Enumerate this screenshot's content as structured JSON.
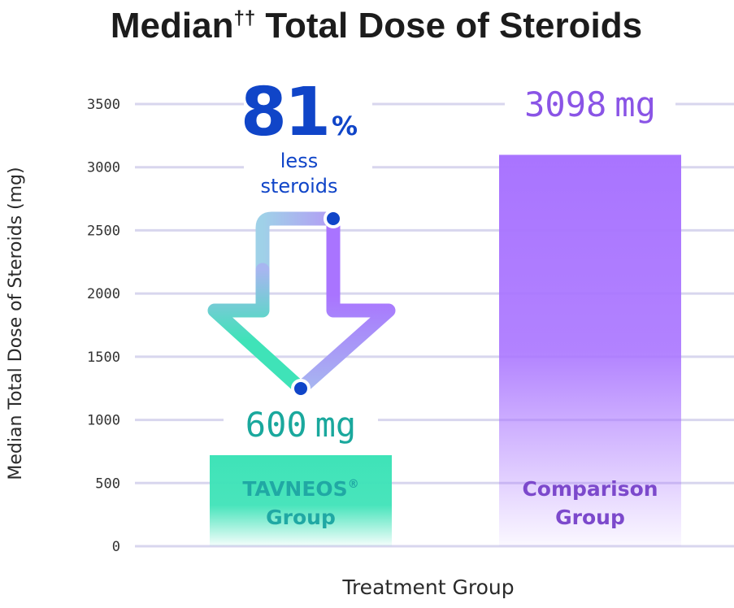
{
  "colors": {
    "gridline": "#d8d6ee",
    "tavneos": "#3fe3b8",
    "tavneos_text": "#1aa89d",
    "tavneos_label": "#20a8a4",
    "comparison": "#a974ff",
    "comparison_text": "#8a54e6",
    "comparison_label": "#7c49cc",
    "reduction": "#1045c8",
    "arrow_start": "#3fe3b8",
    "arrow_end": "#a974ff"
  },
  "chart_data": {
    "type": "bar",
    "title_main": "Median",
    "title_sup": "††",
    "title_rest": " Total Dose of Steroids",
    "xlabel": "Treatment Group",
    "ylabel": "Median Total Dose of Steroids (mg)",
    "ylim": [
      0,
      3500
    ],
    "yticks": [
      0,
      500,
      1000,
      1500,
      2000,
      2500,
      3000,
      3500
    ],
    "grid": true,
    "bars": [
      {
        "category_line1": "TAVNEOS",
        "category_reg": "®",
        "category_line2": "Group",
        "value": 600,
        "value_number": "600",
        "unit": "mg"
      },
      {
        "category_line1": "Comparison",
        "category_reg": "",
        "category_line2": "Group",
        "value": 3098,
        "value_number": "3098",
        "unit": "mg"
      }
    ],
    "annotation": {
      "percent_number": "81",
      "percent_sign": "%",
      "line1": "less",
      "line2": "steroids"
    }
  }
}
